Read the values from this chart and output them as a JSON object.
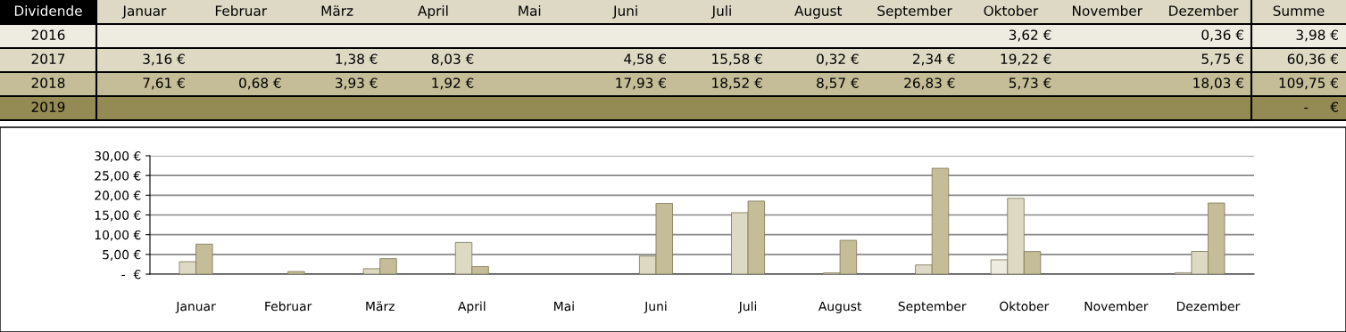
{
  "chart_data": {
    "type": "bar",
    "legend_title": "Dividende",
    "categories": [
      "Januar",
      "Februar",
      "März",
      "April",
      "Mai",
      "Juni",
      "Juli",
      "August",
      "September",
      "Oktober",
      "November",
      "Dezember"
    ],
    "series": [
      {
        "name": "2016",
        "color": "#eeece1",
        "values": [
          null,
          null,
          null,
          null,
          null,
          null,
          null,
          null,
          null,
          3.62,
          null,
          0.36
        ],
        "value_labels": [
          null,
          null,
          null,
          null,
          null,
          null,
          null,
          null,
          null,
          "3,62 €",
          null,
          "0,36 €"
        ]
      },
      {
        "name": "2017",
        "color": "#ddd9c3",
        "values": [
          3.16,
          null,
          1.38,
          8.03,
          null,
          4.58,
          15.58,
          0.32,
          2.34,
          19.22,
          null,
          5.75
        ],
        "value_labels": [
          "3,16 €",
          null,
          "1,38 €",
          "8,03 €",
          null,
          "4,58 €",
          "15,58 €",
          "0,32 €",
          "2,34 €",
          "19,22 €",
          null,
          "5,75 €"
        ]
      },
      {
        "name": "2018",
        "color": "#c4bd97",
        "values": [
          7.61,
          0.68,
          3.93,
          1.92,
          null,
          17.93,
          18.52,
          8.57,
          26.83,
          5.73,
          null,
          18.03
        ],
        "value_labels": [
          "7,61 €",
          "0,68 €",
          "3,93 €",
          "1,92 €",
          null,
          "17,93 €",
          "18,52 €",
          "8,57 €",
          "26,83 €",
          "5,73 €",
          null,
          "18,03 €"
        ]
      },
      {
        "name": "2019",
        "values": [
          null,
          null,
          null,
          null,
          null,
          null,
          null,
          null,
          null,
          null,
          null,
          null
        ],
        "value_labels": [
          null,
          null,
          null,
          null,
          null,
          null,
          null,
          null,
          null,
          null,
          null,
          null
        ]
      }
    ],
    "annotations": [
      "Summe",
      "3,98 €",
      "60,36 €",
      "109,75 €",
      "-     €"
    ],
    "ylim": [
      0,
      30
    ],
    "yticks": [
      {
        "value": 0,
        "label": "-  €"
      },
      {
        "value": 5,
        "label": "5,00 €"
      },
      {
        "value": 10,
        "label": "10,00 €"
      },
      {
        "value": 15,
        "label": "15,00 €"
      },
      {
        "value": 20,
        "label": "20,00 €"
      },
      {
        "value": 25,
        "label": "25,00 €"
      },
      {
        "value": 30,
        "label": "30,00 €"
      }
    ],
    "grid": "y"
  }
}
